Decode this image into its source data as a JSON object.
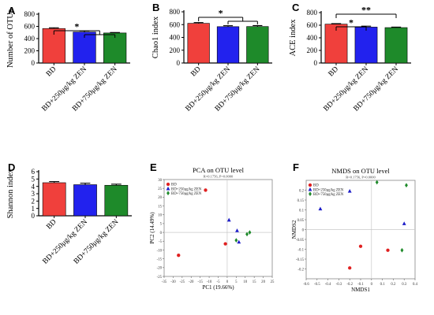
{
  "chart_data": [
    {
      "panel": "A",
      "type": "bar",
      "ylabel": "Number of OTUs",
      "ylim": [
        0,
        800
      ],
      "yticks": [
        0,
        200,
        400,
        600,
        800
      ],
      "categories": [
        "BD",
        "BD+250μg/kg ZEN",
        "BD+750μg/kg ZEN"
      ],
      "values": [
        565,
        508,
        492
      ],
      "errors": [
        12,
        18,
        8
      ],
      "colors": [
        "#f0403c",
        "#2222ee",
        "#1e8a2a"
      ],
      "significance": [
        {
          "label": "*",
          "from": 0,
          "to": [
            1,
            2
          ]
        }
      ]
    },
    {
      "panel": "B",
      "type": "bar",
      "ylabel": "Chao1 index",
      "ylim": [
        0,
        800
      ],
      "yticks": [
        0,
        200,
        400,
        600,
        800
      ],
      "categories": [
        "BD",
        "BD+250μg/kg ZEN",
        "BD+750μg/kg ZEN"
      ],
      "values": [
        620,
        568,
        570
      ],
      "errors": [
        12,
        15,
        15
      ],
      "colors": [
        "#f0403c",
        "#2222ee",
        "#1e8a2a"
      ],
      "significance": [
        {
          "label": "*",
          "from": 0,
          "to": [
            1,
            2
          ]
        }
      ]
    },
    {
      "panel": "C",
      "type": "bar",
      "ylabel": "ACE index",
      "ylim": [
        0,
        800
      ],
      "yticks": [
        0,
        200,
        400,
        600,
        800
      ],
      "categories": [
        "BD",
        "BD+250μg/kg ZEN",
        "BD+750μg/kg ZEN"
      ],
      "values": [
        617,
        570,
        562
      ],
      "errors": [
        8,
        15,
        8
      ],
      "colors": [
        "#f0403c",
        "#2222ee",
        "#1e8a2a"
      ],
      "significance": [
        {
          "label": "**",
          "from": 0,
          "to": [
            2
          ]
        },
        {
          "label": "*",
          "from": 0,
          "to": [
            1
          ]
        }
      ]
    },
    {
      "panel": "D",
      "type": "bar",
      "ylabel": "Shannon index",
      "ylim": [
        0,
        6
      ],
      "yticks": [
        0,
        1,
        2,
        3,
        4,
        5,
        6
      ],
      "categories": [
        "BD",
        "BD+250μg/kg ZEN",
        "BD+750μg/kg ZEN"
      ],
      "values": [
        4.5,
        4.23,
        4.15
      ],
      "errors": [
        0.15,
        0.2,
        0.15
      ],
      "colors": [
        "#f0403c",
        "#2222ee",
        "#1e8a2a"
      ],
      "significance": []
    },
    {
      "panel": "E",
      "type": "scatter",
      "title": "PCA on OTU level",
      "subtitle": "R=0.1756, P=0.0000",
      "xlabel": "PC1 (19.66%)",
      "ylabel": "PC2 (14.49%)",
      "xlim": [
        -35,
        25
      ],
      "ylim": [
        -25,
        30
      ],
      "xticks": [
        -35,
        -30,
        -25,
        -20,
        -15,
        -10,
        -5,
        0,
        5,
        10,
        15,
        20,
        25
      ],
      "yticks": [
        -25,
        -20,
        -15,
        -10,
        -5,
        0,
        5,
        10,
        15,
        20,
        25,
        30
      ],
      "ref_lines": {
        "x": 0,
        "y": 0
      },
      "legend": "top-left",
      "series": [
        {
          "name": "BD",
          "marker": "circle",
          "color": "#e02020",
          "points": [
            [
              -12,
              24
            ],
            [
              -27,
              -13
            ],
            [
              -1,
              -6.5
            ]
          ]
        },
        {
          "name": "BD+250μg/kg ZEN",
          "marker": "triangle",
          "color": "#1c1cc8",
          "points": [
            [
              1,
              7
            ],
            [
              5.5,
              1
            ],
            [
              6.5,
              -5.5
            ]
          ]
        },
        {
          "name": "BD+750μg/kg ZEN",
          "marker": "diamond",
          "color": "#1e8a2a",
          "points": [
            [
              5,
              -4.5
            ],
            [
              11,
              -1
            ],
            [
              12.5,
              0
            ]
          ]
        }
      ]
    },
    {
      "panel": "F",
      "type": "scatter",
      "title": "NMDS on OTU level",
      "subtitle": "R=0.1756, P=0.0000",
      "xlabel": "NMDS1",
      "ylabel": "NMDS2",
      "xlim": [
        -0.6,
        0.4
      ],
      "ylim": [
        -0.25,
        0.25
      ],
      "xticks": [
        -0.6,
        -0.5,
        -0.4,
        -0.3,
        -0.2,
        -0.1,
        0,
        0.1,
        0.2,
        0.3,
        0.4
      ],
      "yticks": [
        -0.2,
        -0.15,
        -0.1,
        -0.05,
        0,
        0.05,
        0.1,
        0.15,
        0.2
      ],
      "ref_lines": {
        "x": 0,
        "y": 0
      },
      "legend": "top-left",
      "series": [
        {
          "name": "BD",
          "marker": "circle",
          "color": "#e02020",
          "points": [
            [
              0.15,
              -0.105
            ],
            [
              -0.1,
              -0.085
            ],
            [
              -0.2,
              -0.195
            ]
          ]
        },
        {
          "name": "BD+250μg/kg ZEN",
          "marker": "triangle",
          "color": "#1c1cc8",
          "points": [
            [
              -0.47,
              0.105
            ],
            [
              -0.2,
              0.195
            ],
            [
              0.3,
              0.03
            ]
          ]
        },
        {
          "name": "BD+750μg/kg ZEN",
          "marker": "diamond",
          "color": "#1e8a2a",
          "points": [
            [
              0.05,
              0.24
            ],
            [
              0.32,
              0.225
            ],
            [
              0.28,
              -0.105
            ]
          ]
        }
      ]
    }
  ]
}
